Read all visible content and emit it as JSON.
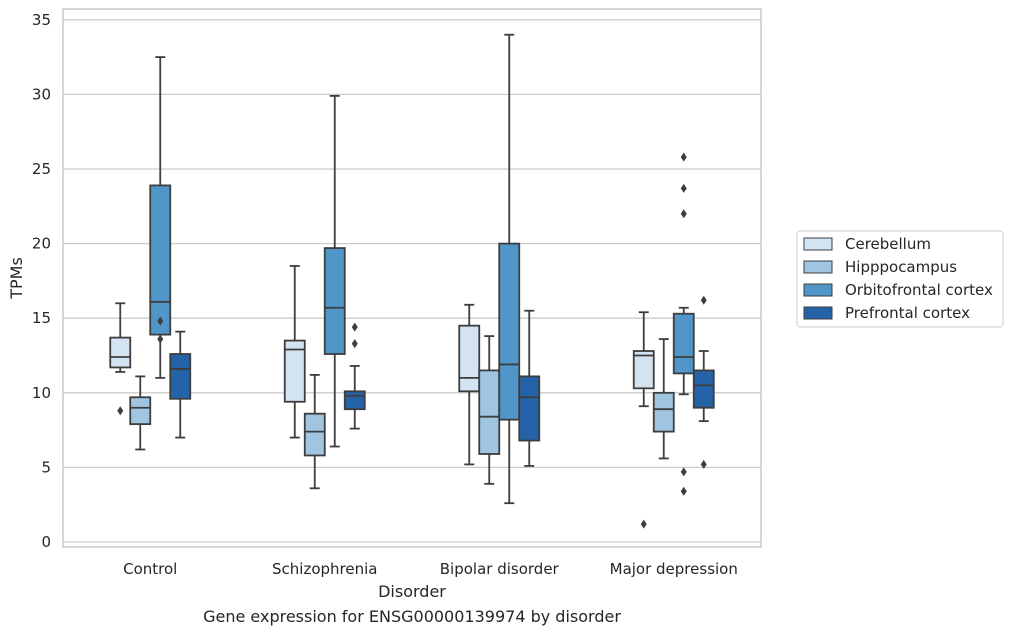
{
  "chart_data": {
    "type": "box",
    "title": "Gene expression for ENSG00000139974 by disorder",
    "xlabel": "Disorder",
    "ylabel": "TPMs",
    "ylim": [
      -0.3,
      35.7
    ],
    "yticks": [
      0,
      5,
      10,
      15,
      20,
      25,
      30,
      35
    ],
    "grid": "horizontal",
    "legend_position": "right",
    "categories": [
      "Control",
      "Schizophrenia",
      "Bipolar disorder",
      "Major depression"
    ],
    "series": [
      {
        "name": "Cerebellum",
        "color": "#d4e3f2",
        "boxes": [
          {
            "whislo": 11.4,
            "q1": 11.7,
            "med": 12.4,
            "q3": 13.7,
            "whishi": 16.0,
            "fliers": [
              8.8
            ]
          },
          {
            "whislo": 7.0,
            "q1": 9.4,
            "med": 12.9,
            "q3": 13.5,
            "whishi": 18.5,
            "fliers": []
          },
          {
            "whislo": 5.2,
            "q1": 10.1,
            "med": 11.0,
            "q3": 14.5,
            "whishi": 15.9,
            "fliers": []
          },
          {
            "whislo": 9.1,
            "q1": 10.3,
            "med": 12.5,
            "q3": 12.8,
            "whishi": 15.4,
            "fliers": [
              1.2
            ]
          }
        ]
      },
      {
        "name": "Hipppocampus",
        "color": "#9fc5e0",
        "boxes": [
          {
            "whislo": 6.2,
            "q1": 7.9,
            "med": 9.0,
            "q3": 9.7,
            "whishi": 11.1,
            "fliers": []
          },
          {
            "whislo": 3.6,
            "q1": 5.8,
            "med": 7.4,
            "q3": 8.6,
            "whishi": 11.2,
            "fliers": []
          },
          {
            "whislo": 3.9,
            "q1": 5.9,
            "med": 8.4,
            "q3": 11.5,
            "whishi": 13.8,
            "fliers": []
          },
          {
            "whislo": 5.6,
            "q1": 7.4,
            "med": 8.9,
            "q3": 10.0,
            "whishi": 13.6,
            "fliers": []
          }
        ]
      },
      {
        "name": "Orbitofrontal cortex",
        "color": "#5196c8",
        "boxes": [
          {
            "whislo": 11.0,
            "q1": 13.9,
            "med": 16.1,
            "q3": 23.9,
            "whishi": 32.5,
            "fliers": [
              14.8,
              13.6
            ]
          },
          {
            "whislo": 6.4,
            "q1": 12.6,
            "med": 15.7,
            "q3": 19.7,
            "whishi": 29.9,
            "fliers": []
          },
          {
            "whislo": 2.6,
            "q1": 8.2,
            "med": 11.9,
            "q3": 20.0,
            "whishi": 34.0,
            "fliers": []
          },
          {
            "whislo": 9.9,
            "q1": 11.3,
            "med": 12.4,
            "q3": 15.3,
            "whishi": 15.7,
            "fliers": [
              25.8,
              23.7,
              22.0,
              4.7,
              3.4
            ]
          }
        ]
      },
      {
        "name": "Prefrontal cortex",
        "color": "#2563a8",
        "boxes": [
          {
            "whislo": 7.0,
            "q1": 9.6,
            "med": 11.6,
            "q3": 12.6,
            "whishi": 14.1,
            "fliers": []
          },
          {
            "whislo": 7.6,
            "q1": 8.9,
            "med": 9.8,
            "q3": 10.1,
            "whishi": 11.8,
            "fliers": [
              14.4,
              13.3
            ]
          },
          {
            "whislo": 5.1,
            "q1": 6.8,
            "med": 9.7,
            "q3": 11.1,
            "whishi": 15.5,
            "fliers": []
          },
          {
            "whislo": 8.1,
            "q1": 9.0,
            "med": 10.5,
            "q3": 11.5,
            "whishi": 12.8,
            "fliers": [
              16.2,
              5.2
            ]
          }
        ]
      }
    ]
  }
}
